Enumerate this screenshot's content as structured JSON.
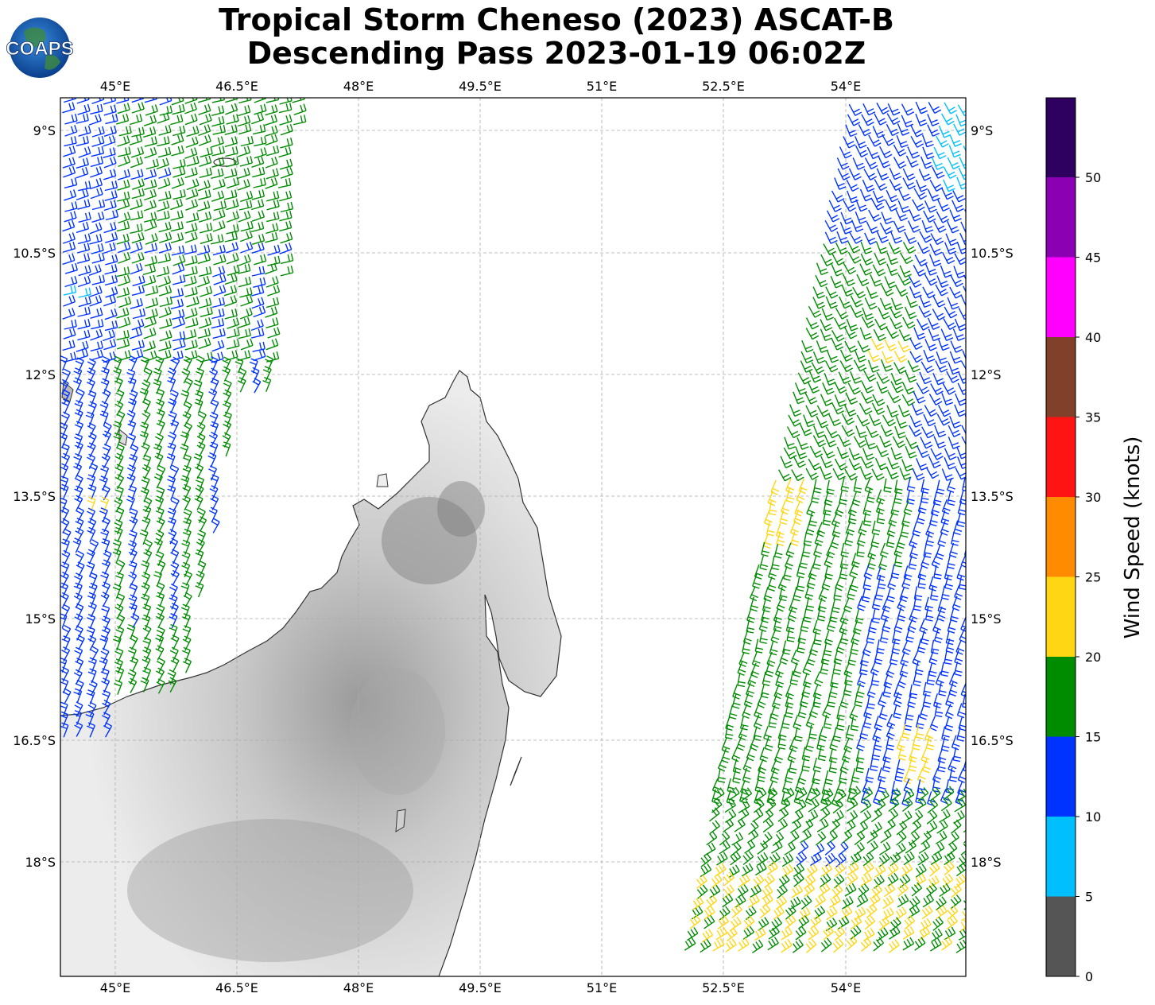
{
  "header": {
    "title_line1": "Tropical Storm Cheneso (2023) ASCAT-B",
    "title_line2": "Descending Pass 2023-01-19 06:02Z",
    "logo_text": "COAPS"
  },
  "map": {
    "lon_ticks": [
      "45°E",
      "46.5°E",
      "48°E",
      "49.5°E",
      "51°E",
      "52.5°E",
      "54°E"
    ],
    "lat_ticks": [
      "9°S",
      "10.5°S",
      "12°S",
      "13.5°S",
      "15°S",
      "16.5°S",
      "18°S"
    ],
    "gridlines": true,
    "land_shading": "grayscale elevation",
    "wind_barbs": "ASCAT-B swath wind barbs colored by speed"
  },
  "colorbar": {
    "label": "Wind Speed (knots)",
    "ticks": [
      "0",
      "5",
      "10",
      "15",
      "20",
      "25",
      "30",
      "35",
      "40",
      "45",
      "50"
    ],
    "bins": [
      {
        "range": "0-5",
        "color": "#555555"
      },
      {
        "range": "5-10",
        "color": "#00bfff"
      },
      {
        "range": "10-15",
        "color": "#0033ff"
      },
      {
        "range": "15-20",
        "color": "#008c00"
      },
      {
        "range": "20-25",
        "color": "#ffd614"
      },
      {
        "range": "25-30",
        "color": "#ff8c00"
      },
      {
        "range": "30-35",
        "color": "#ff1414"
      },
      {
        "range": "35-40",
        "color": "#80402a"
      },
      {
        "range": "40-45",
        "color": "#ff00ff"
      },
      {
        "range": "45-50",
        "color": "#8c00b4"
      },
      {
        "range": "50+",
        "color": "#2e0060"
      }
    ]
  }
}
